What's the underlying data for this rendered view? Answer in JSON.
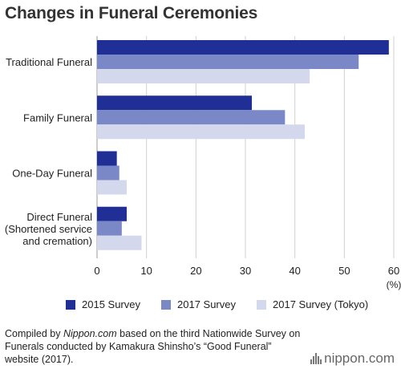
{
  "title": "Changes in Funeral Ceremonies",
  "chart_data": {
    "type": "bar",
    "orientation": "horizontal",
    "categories": [
      [
        "Traditional Funeral"
      ],
      [
        "Family Funeral"
      ],
      [
        "One-Day Funeral"
      ],
      [
        "Direct Funeral",
        "(Shortened service",
        "and cremation)"
      ]
    ],
    "series": [
      {
        "name": "2015 Survey",
        "color": "#1f2f95",
        "values": [
          59,
          31.3,
          4,
          6
        ]
      },
      {
        "name": "2017 Survey",
        "color": "#7a88c8",
        "values": [
          52.9,
          38,
          4.5,
          5
        ]
      },
      {
        "name": "2017 Survey (Tokyo)",
        "color": "#d4d8ec",
        "values": [
          43,
          42,
          6,
          9
        ]
      }
    ],
    "x_ticks": [
      0,
      10,
      20,
      30,
      40,
      50,
      60
    ],
    "xlim": [
      0,
      60
    ],
    "unit_label": "(%)",
    "grid": true,
    "legend_position": "bottom"
  },
  "caption": {
    "prefix": "Compiled by ",
    "source": "Nippon.com",
    "suffix": " based on the third Nationwide Survey on Funerals conducted by Kamakura Shinsho’s “Good Funeral” website (2017)."
  },
  "brand": "nippon.com"
}
